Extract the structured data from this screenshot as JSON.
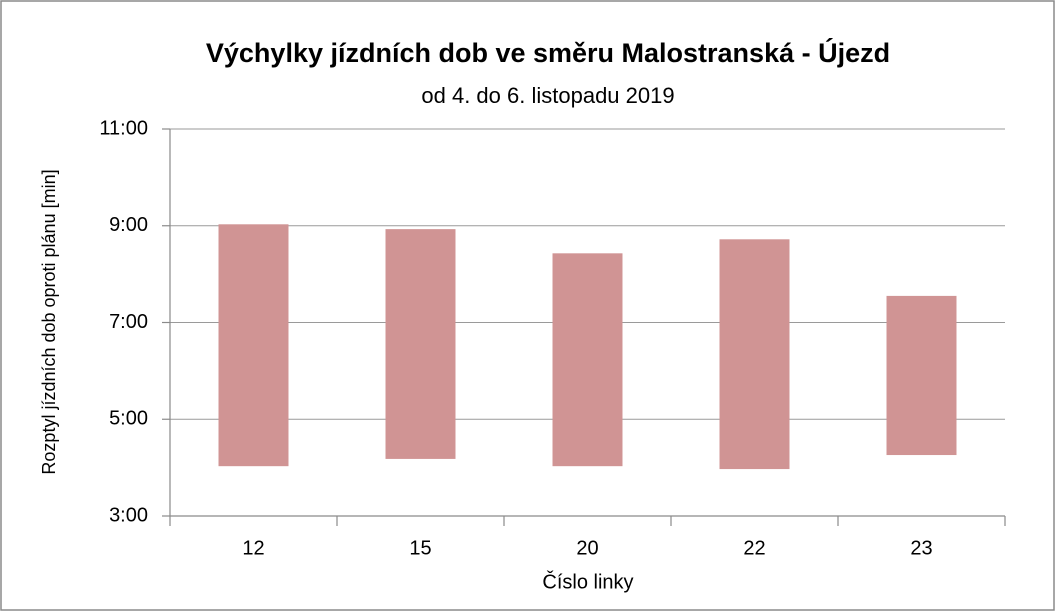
{
  "chart_data": {
    "type": "floating-bar",
    "title": "Výchylky jízdních dob ve směru Malostranská - Újezd",
    "subtitle": "od 4. do 6. listopadu 2019",
    "x_label": "Číslo linky",
    "y_label": "Rozptyl jízdních dob oproti plánu [min]",
    "categories": [
      "12",
      "15",
      "20",
      "22",
      "23"
    ],
    "low": [
      4.03,
      4.18,
      4.03,
      3.97,
      4.26
    ],
    "high": [
      9.03,
      8.93,
      8.43,
      8.72,
      7.55
    ],
    "color": "#d09494",
    "ylim": [
      3,
      11
    ],
    "yticks": [
      {
        "value": 3,
        "label": "3:00"
      },
      {
        "value": 5,
        "label": "5:00"
      },
      {
        "value": 7,
        "label": "7:00"
      },
      {
        "value": 9,
        "label": "9:00"
      },
      {
        "value": 11,
        "label": "11:00"
      }
    ],
    "grid": true
  }
}
